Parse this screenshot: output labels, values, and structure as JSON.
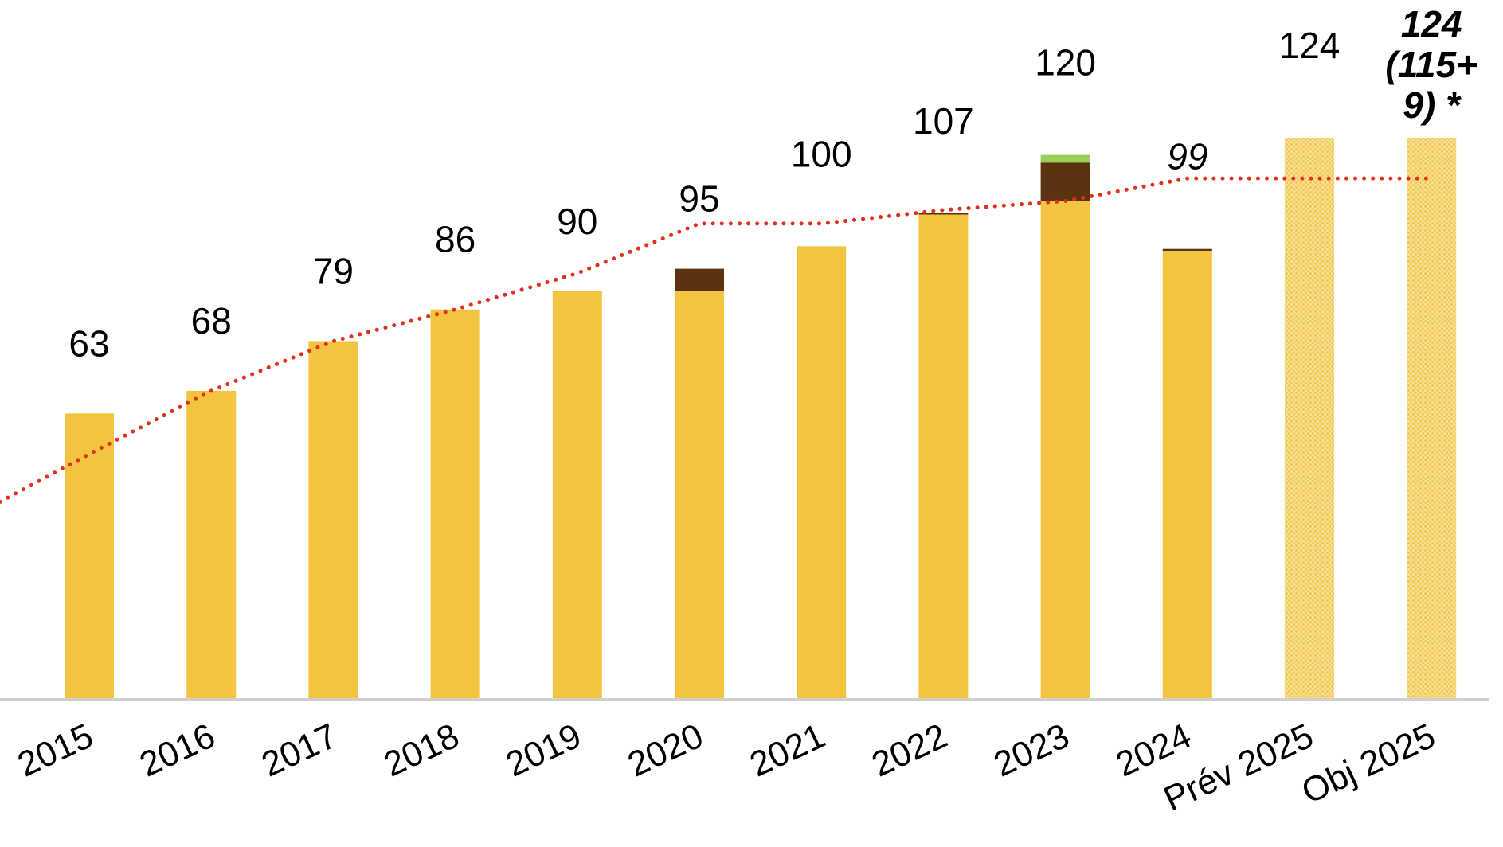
{
  "colors": {
    "main": "#F2C440",
    "dark": "#5C3310",
    "green": "#9ACD5A",
    "trend": "#E0301E",
    "axis": "#D0D0D0"
  },
  "chart_data": {
    "type": "bar",
    "stacked": true,
    "grid": false,
    "legend": "none",
    "categories": [
      "2015",
      "2016",
      "2017",
      "2018",
      "2019",
      "2020",
      "2021",
      "2022",
      "2023",
      "2024",
      "Prév 2025",
      "Obj 2025"
    ],
    "labels": [
      "63",
      "68",
      "79",
      "86",
      "90",
      "95",
      "100",
      "107",
      "120",
      "99",
      "124",
      "124 (115+ 9) *"
    ],
    "label_styles": [
      "normal",
      "normal",
      "normal",
      "normal",
      "normal",
      "normal",
      "normal",
      "normal",
      "normal",
      "italic",
      "normal",
      "bold-italic"
    ],
    "series": [
      {
        "color_key": "main",
        "pattern": [
          false,
          false,
          false,
          false,
          false,
          false,
          false,
          false,
          false,
          false,
          true,
          true
        ],
        "values": [
          63,
          68,
          79,
          86,
          90,
          90,
          100,
          107,
          110,
          99,
          124,
          124
        ]
      },
      {
        "color_key": "dark",
        "values": [
          0,
          0,
          0,
          0,
          0,
          5,
          0,
          0.3,
          8.5,
          0.4,
          0,
          0
        ]
      },
      {
        "color_key": "green",
        "values": [
          0,
          0,
          0,
          0,
          0,
          0,
          0,
          0,
          1.7,
          0,
          0,
          0
        ]
      }
    ],
    "trend": {
      "style": "dotted",
      "values": [
        54,
        68,
        79,
        86,
        94,
        105,
        105,
        108,
        110,
        115,
        115,
        115
      ]
    },
    "ylim": [
      0,
      124
    ]
  }
}
